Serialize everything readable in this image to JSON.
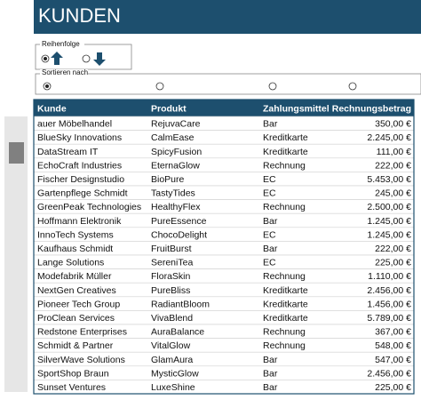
{
  "header": {
    "title": "KUNDEN"
  },
  "order_group": {
    "label": "Reihenfolge"
  },
  "sort_group": {
    "label": "Sortieren nach"
  },
  "table": {
    "columns": [
      "Kunde",
      "Produkt",
      "Zahlungsmittel",
      "Rechnungsbetrag"
    ],
    "rows": [
      [
        "auer Möbelhandel",
        "RejuvaCare",
        "Bar",
        "350,00 €"
      ],
      [
        "BlueSky Innovations",
        "CalmEase",
        "Kreditkarte",
        "2.245,00 €"
      ],
      [
        "DataStream IT",
        "SpicyFusion",
        "Kreditkarte",
        "111,00 €"
      ],
      [
        "EchoCraft Industries",
        "EternaGlow",
        "Rechnung",
        "222,00 €"
      ],
      [
        "Fischer Designstudio",
        "BioPure",
        "EC",
        "5.453,00 €"
      ],
      [
        "Gartenpflege Schmidt",
        "TastyTides",
        "EC",
        "245,00 €"
      ],
      [
        "GreenPeak Technologies",
        "HealthyFlex",
        "Rechnung",
        "2.500,00 €"
      ],
      [
        "Hoffmann Elektronik",
        "PureEssence",
        "Bar",
        "1.245,00 €"
      ],
      [
        "InnoTech Systems",
        "ChocoDelight",
        "EC",
        "1.245,00 €"
      ],
      [
        "Kaufhaus Schmidt",
        "FruitBurst",
        "Bar",
        "222,00 €"
      ],
      [
        "Lange Solutions",
        "SereniTea",
        "EC",
        "225,00 €"
      ],
      [
        "Modefabrik Müller",
        "FloraSkin",
        "Rechnung",
        "1.110,00 €"
      ],
      [
        "NextGen Creatives",
        "PureBliss",
        "Kreditkarte",
        "2.456,00 €"
      ],
      [
        "Pioneer Tech Group",
        "RadiantBloom",
        "Kreditkarte",
        "1.456,00 €"
      ],
      [
        "ProClean Services",
        "VivaBlend",
        "Kreditkarte",
        "5.789,00 €"
      ],
      [
        "Redstone Enterprises",
        "AuraBalance",
        "Rechnung",
        "367,00 €"
      ],
      [
        "Schmidt & Partner",
        "VitalGlow",
        "Rechnung",
        "548,00 €"
      ],
      [
        "SilverWave Solutions",
        "GlamAura",
        "Bar",
        "547,00 €"
      ],
      [
        "SportShop Braun",
        "MysticGlow",
        "Bar",
        "2.456,00 €"
      ],
      [
        "Sunset Ventures",
        "LuxeShine",
        "Bar",
        "225,00 €"
      ]
    ]
  }
}
